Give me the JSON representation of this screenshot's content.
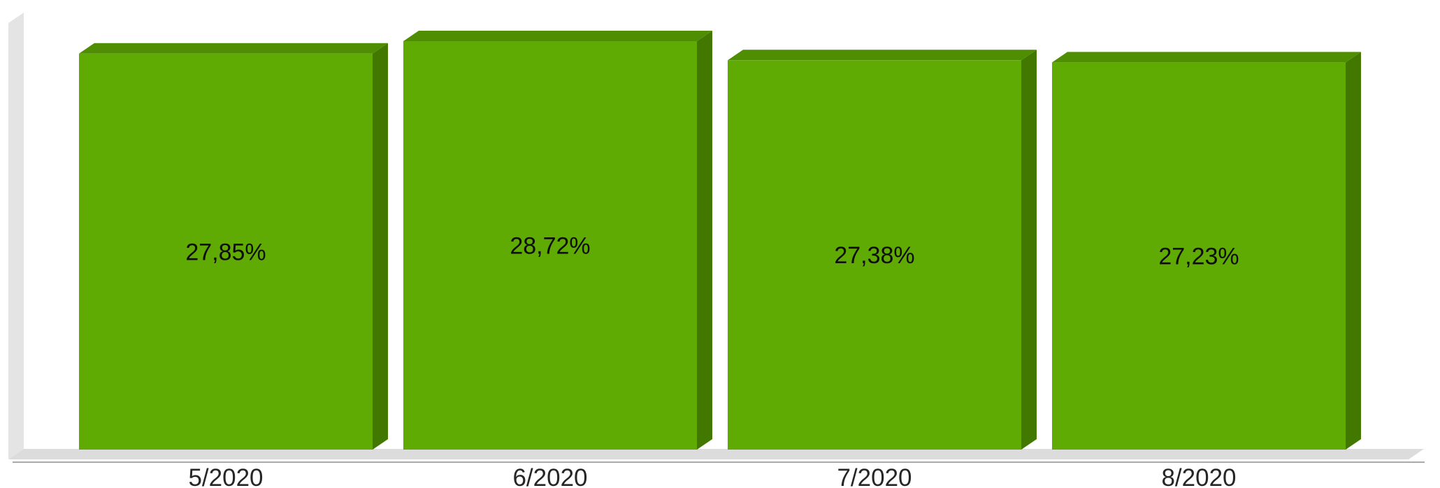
{
  "chart_data": {
    "type": "bar",
    "categories": [
      "5/2020",
      "6/2020",
      "7/2020",
      "8/2020"
    ],
    "values": [
      27.85,
      28.72,
      27.38,
      27.23
    ],
    "data_labels": [
      "27,85%",
      "28,72%",
      "27,38%",
      "27,23%"
    ],
    "title": "",
    "xlabel": "",
    "ylabel": "",
    "ylim": [
      0,
      28.72
    ],
    "grid": false,
    "legend": "none",
    "three_d": true,
    "colors": {
      "bar_front": "#5faa03",
      "bar_side": "#427700",
      "bar_top": "#4f8e02",
      "wall": "#e4e4e4",
      "floor": "#dcdcdc",
      "axis": "#aaaaaa",
      "label_text": "#0d0d0d",
      "tick_text": "#262626"
    }
  }
}
